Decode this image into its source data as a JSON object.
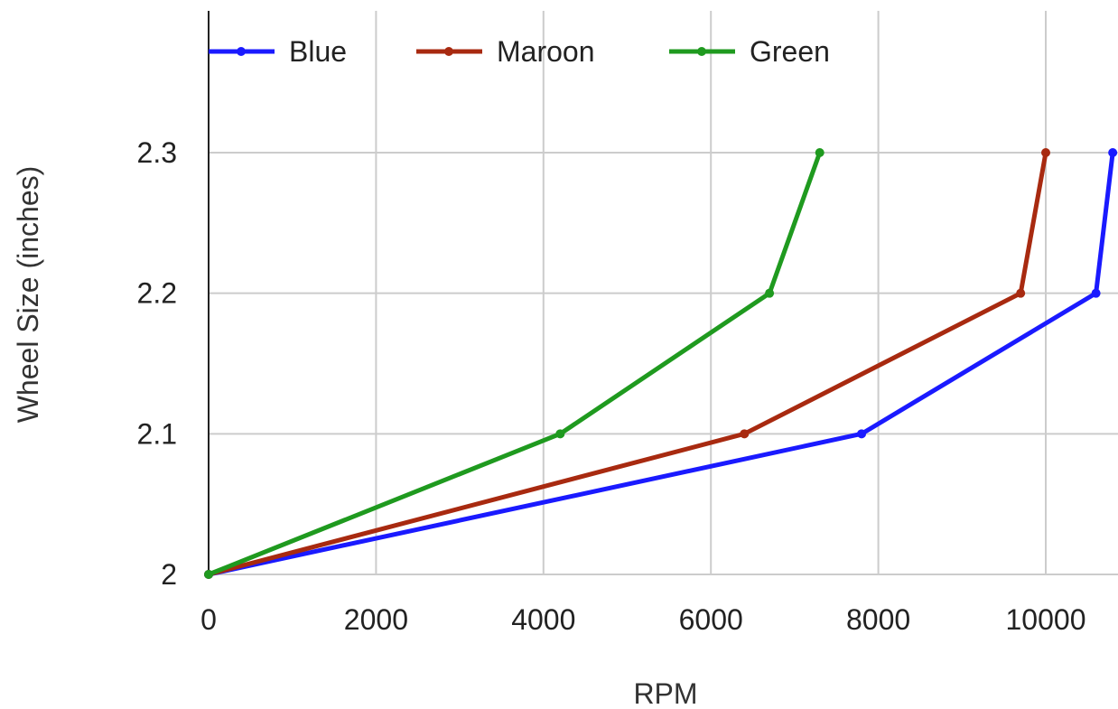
{
  "chart_data": {
    "type": "line",
    "title": "",
    "xlabel": "RPM",
    "ylabel": "Wheel Size (inches)",
    "xlim": [
      0,
      10800
    ],
    "ylim": [
      2,
      2.4
    ],
    "x_ticks": [
      0,
      2000,
      4000,
      6000,
      8000,
      10000
    ],
    "x_tick_labels": [
      "0",
      "2000",
      "4000",
      "6000",
      "8000",
      "10000"
    ],
    "y_ticks": [
      2,
      2.1,
      2.2,
      2.3
    ],
    "y_tick_labels": [
      "2",
      "2.1",
      "2.2",
      "2.3"
    ],
    "grid": true,
    "legend_position": "top",
    "series": [
      {
        "name": "Blue",
        "color": "#1a1aff",
        "points": [
          [
            0,
            2
          ],
          [
            7800,
            2.1
          ],
          [
            10600,
            2.2
          ],
          [
            10800,
            2.3
          ]
        ]
      },
      {
        "name": "Maroon",
        "color": "#a82a10",
        "points": [
          [
            0,
            2
          ],
          [
            6400,
            2.1
          ],
          [
            9700,
            2.2
          ],
          [
            10000,
            2.3
          ]
        ]
      },
      {
        "name": "Green",
        "color": "#1f9a1f",
        "points": [
          [
            0,
            2
          ],
          [
            4200,
            2.1
          ],
          [
            6700,
            2.2
          ],
          [
            7300,
            2.3
          ]
        ]
      }
    ]
  }
}
